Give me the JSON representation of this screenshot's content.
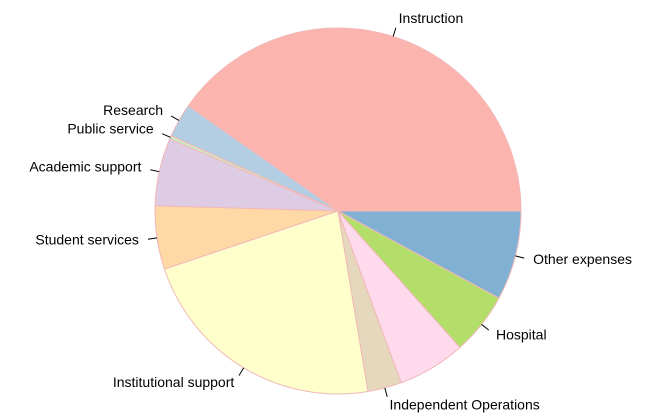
{
  "chart_data": {
    "type": "pie",
    "categories": [
      "Instruction",
      "Research",
      "Public service",
      "Academic support",
      "Student services",
      "Institutional support",
      "Independent Operations",
      null,
      "Hospital",
      "Other expenses"
    ],
    "values": [
      40.3,
      3,
      0.3,
      6,
      5.6,
      22.5,
      3,
      6,
      5.5,
      7.9
    ],
    "colors": [
      "#fbb4ae",
      "#b3cde3",
      "#ccebc5",
      "#decbe4",
      "#fed9a6",
      "#ffffcc",
      "#e5d8bd",
      "#fddaec",
      "#b3de69",
      "#80b1d3"
    ],
    "start_angle": 0,
    "direction": "counterclockwise"
  }
}
